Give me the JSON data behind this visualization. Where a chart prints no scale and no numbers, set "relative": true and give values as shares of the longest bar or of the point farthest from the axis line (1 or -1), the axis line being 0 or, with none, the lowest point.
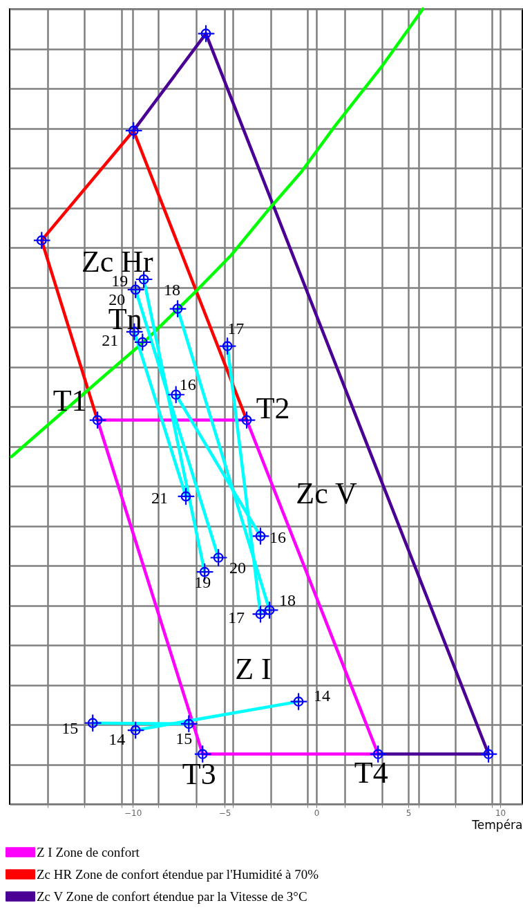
{
  "chart_data": {
    "type": "line",
    "xlabel": "Tempéra",
    "relative": true,
    "grid": true,
    "legend": "bottom",
    "xlim": [
      -16.7,
      11.2
    ],
    "xticks": [
      {
        "value": -14.65,
        "label": null
      },
      {
        "value": -12.65,
        "label": null
      },
      {
        "value": -10.6,
        "label": null
      },
      -10,
      {
        "value": -8.6,
        "label": null
      },
      {
        "value": -6.55,
        "label": null
      },
      -5,
      {
        "value": -4.55,
        "label": null
      },
      {
        "value": -2.5,
        "label": null
      },
      {
        "value": -0.5,
        "label": null
      },
      0,
      {
        "value": 1.55,
        "label": null
      },
      {
        "value": 3.55,
        "label": null
      },
      5,
      {
        "value": 5.55,
        "label": null
      },
      {
        "value": 7.55,
        "label": null
      },
      {
        "value": 9.55,
        "label": null
      },
      10
    ],
    "series": [
      {
        "name": "Z I Zone de confort",
        "color": "#ff00ff",
        "x": [
          -11.92,
          -3.8,
          3.35,
          -6.2,
          -11.92,
          -3.8
        ],
        "values": [
          0.483,
          0.483,
          0.063,
          0.063,
          0.483,
          0.483
        ]
      },
      {
        "name": "Zc HR Zone de confort étendue par l'Humidité à 70%",
        "color": "#ff0000",
        "x": [
          -11.92,
          -14.96,
          -9.96,
          -3.8
        ],
        "values": [
          0.483,
          0.709,
          0.847,
          0.483
        ]
      },
      {
        "name": "Zc V Zone de confort étendue par la Vitesse de 3°C",
        "color": "#4a0094",
        "x": [
          -9.96,
          -6.02,
          9.36,
          3.35
        ],
        "values": [
          0.847,
          0.969,
          0.063,
          0.063
        ]
      },
      {
        "color": "#00ff00",
        "x": [
          -16.6,
          -11.73,
          -9.17,
          -6.65,
          -4.66,
          -2.67,
          -0.83,
          0.98,
          3.53,
          5.79
        ],
        "values": [
          0.437,
          0.535,
          0.586,
          0.643,
          0.69,
          0.746,
          0.795,
          0.852,
          0.927,
          1
        ]
      },
      {
        "color": "#00ffff",
        "x": [
          -0.98,
          -9.85
        ],
        "values": [
          0.129,
          0.093
        ]
      },
      {
        "color": "#00ffff",
        "x": [
          -6.95,
          -12.18
        ],
        "values": [
          0.101,
          0.102
        ]
      },
      {
        "color": "#00ffff",
        "x": [
          -7.65,
          -3.05
        ],
        "values": [
          0.515,
          0.337
        ]
      },
      {
        "color": "#00ffff",
        "x": [
          -4.85,
          -3.05
        ],
        "values": [
          0.576,
          0.239
        ]
      },
      {
        "color": "#00ffff",
        "x": [
          -7.56,
          -2.56
        ],
        "values": [
          0.623,
          0.244
        ]
      },
      {
        "color": "#00ffff",
        "x": [
          -9.4,
          -6.09
        ],
        "values": [
          0.66,
          0.292
        ]
      },
      {
        "color": "#00ffff",
        "x": [
          -9.85,
          -5.34
        ],
        "values": [
          0.647,
          0.31
        ]
      },
      {
        "color": "#00ffff",
        "x": [
          -9.92,
          -7.11
        ],
        "values": [
          0.594,
          0.387
        ]
      },
      {
        "type": "scatter",
        "marker": "cross",
        "color": "#0000ff",
        "x": [
          -11.92,
          -3.8,
          -6.2,
          3.35,
          -14.96,
          -9.96,
          -6.02,
          9.36,
          -9.47,
          -0.98,
          -9.85,
          -6.95,
          -12.18,
          -7.65,
          -3.05,
          -4.85,
          -3.05,
          -7.56,
          -2.56,
          -9.4,
          -6.09,
          -9.85,
          -5.34,
          -9.92,
          -7.11
        ],
        "values": [
          0.483,
          0.483,
          0.063,
          0.063,
          0.709,
          0.847,
          0.969,
          0.063,
          0.581,
          0.129,
          0.093,
          0.101,
          0.102,
          0.515,
          0.337,
          0.576,
          0.239,
          0.623,
          0.244,
          0.66,
          0.292,
          0.647,
          0.31,
          0.594,
          0.387
        ]
      }
    ],
    "annotations": [
      "Zc Hr",
      "Zc V",
      "Z I",
      {
        "text": "T1",
        "x": -11.92,
        "y": 0.483
      },
      {
        "text": "T2",
        "x": -3.8,
        "y": 0.483
      },
      {
        "text": "T3",
        "x": -6.2,
        "y": 0.063
      },
      {
        "text": "T4",
        "x": 3.35,
        "y": 0.063
      },
      {
        "text": "Tn",
        "x": -9.47,
        "y": 0.581
      },
      {
        "text": "19",
        "x": -9.4,
        "y": 0.66
      },
      {
        "text": "20",
        "x": -9.85,
        "y": 0.647
      },
      {
        "text": "18",
        "x": -7.56,
        "y": 0.623
      },
      {
        "text": "21",
        "x": -9.92,
        "y": 0.594
      },
      {
        "text": "17",
        "x": -4.85,
        "y": 0.576
      },
      {
        "text": "16",
        "x": -7.65,
        "y": 0.515
      },
      {
        "text": "21",
        "x": -7.11,
        "y": 0.387
      },
      {
        "text": "16",
        "x": -3.05,
        "y": 0.337
      },
      {
        "text": "20",
        "x": -5.34,
        "y": 0.31
      },
      {
        "text": "19",
        "x": -6.09,
        "y": 0.292
      },
      {
        "text": "18",
        "x": -2.56,
        "y": 0.244
      },
      {
        "text": "17",
        "x": -3.05,
        "y": 0.239
      },
      {
        "text": "14",
        "x": -0.98,
        "y": 0.129
      },
      {
        "text": "15",
        "x": -12.18,
        "y": 0.102
      },
      {
        "text": "14",
        "x": -9.85,
        "y": 0.093
      },
      {
        "text": "15",
        "x": -6.95,
        "y": 0.101
      }
    ]
  }
}
